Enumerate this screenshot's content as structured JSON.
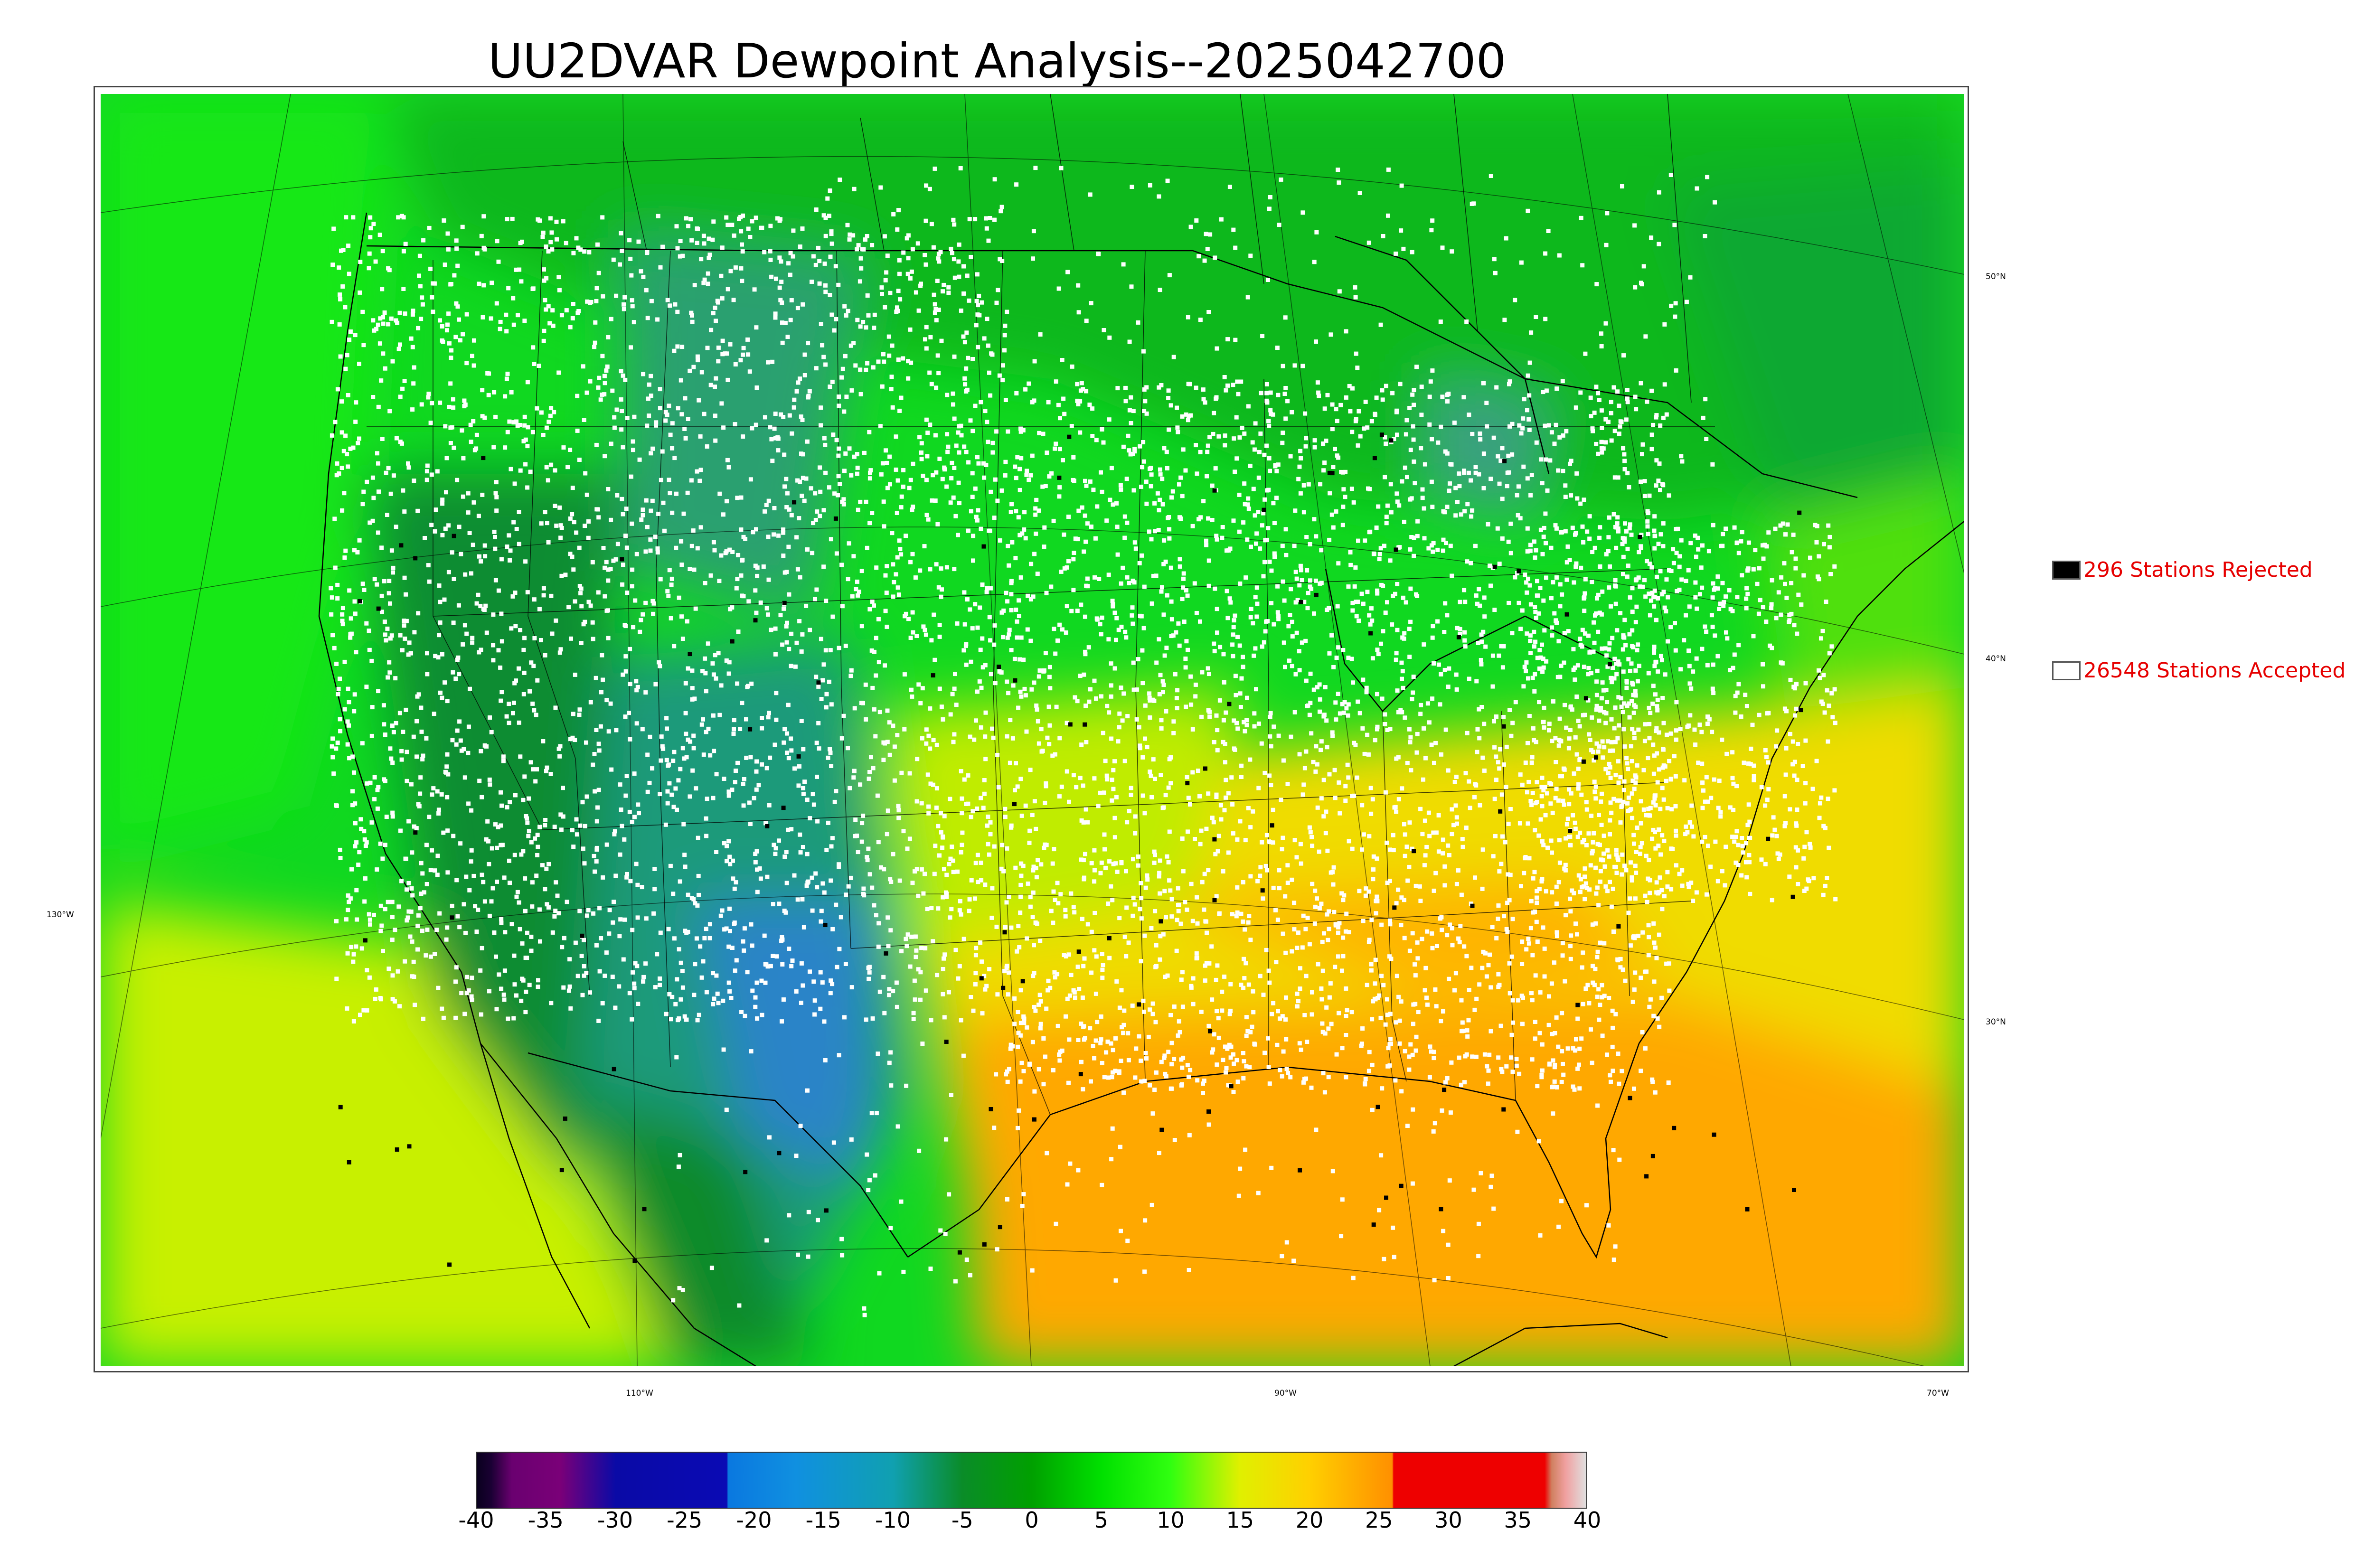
{
  "title": "UU2DVAR Dewpoint Analysis--2025042700",
  "legend": {
    "rejected": {
      "label": "296 Stations Rejected",
      "color": "#000000"
    },
    "accepted": {
      "label": "26548 Stations Accepted",
      "color": "#ffffff"
    }
  },
  "lat_labels": [
    "50°N",
    "40°N",
    "30°N"
  ],
  "lon_labels": [
    "130°W",
    "110°W",
    "90°W",
    "70°W"
  ],
  "colorbar": {
    "ticks": [
      "-40",
      "-35",
      "-30",
      "-25",
      "-20",
      "-15",
      "-10",
      "-5",
      "0",
      "5",
      "10",
      "15",
      "20",
      "25",
      "30",
      "35",
      "40"
    ],
    "range": [
      -40,
      40
    ],
    "stops": [
      {
        "v": -40,
        "c": "#0a001e"
      },
      {
        "v": -39,
        "c": "#1a0033"
      },
      {
        "v": -37.5,
        "c": "#6a0070"
      },
      {
        "v": -34,
        "c": "#7a0078"
      },
      {
        "v": -30,
        "c": "#0a0aa6"
      },
      {
        "v": -22,
        "c": "#0a0ab4"
      },
      {
        "v": -21.9,
        "c": "#0a78e0"
      },
      {
        "v": -17,
        "c": "#1090e0"
      },
      {
        "v": -10,
        "c": "#10a0b0"
      },
      {
        "v": -5,
        "c": "#0a8c28"
      },
      {
        "v": 0,
        "c": "#00a000"
      },
      {
        "v": 5,
        "c": "#00e000"
      },
      {
        "v": 10,
        "c": "#30ff10"
      },
      {
        "v": 15,
        "c": "#e0f000"
      },
      {
        "v": 20,
        "c": "#ffd000"
      },
      {
        "v": 25,
        "c": "#ff9a00"
      },
      {
        "v": 26,
        "c": "#ff9000"
      },
      {
        "v": 26.1,
        "c": "#ee0000"
      },
      {
        "v": 37,
        "c": "#ee0000"
      },
      {
        "v": 37.5,
        "c": "#d08060"
      },
      {
        "v": 38.5,
        "c": "#f0a0a0"
      },
      {
        "v": 40,
        "c": "#e0e0e0"
      }
    ]
  }
}
